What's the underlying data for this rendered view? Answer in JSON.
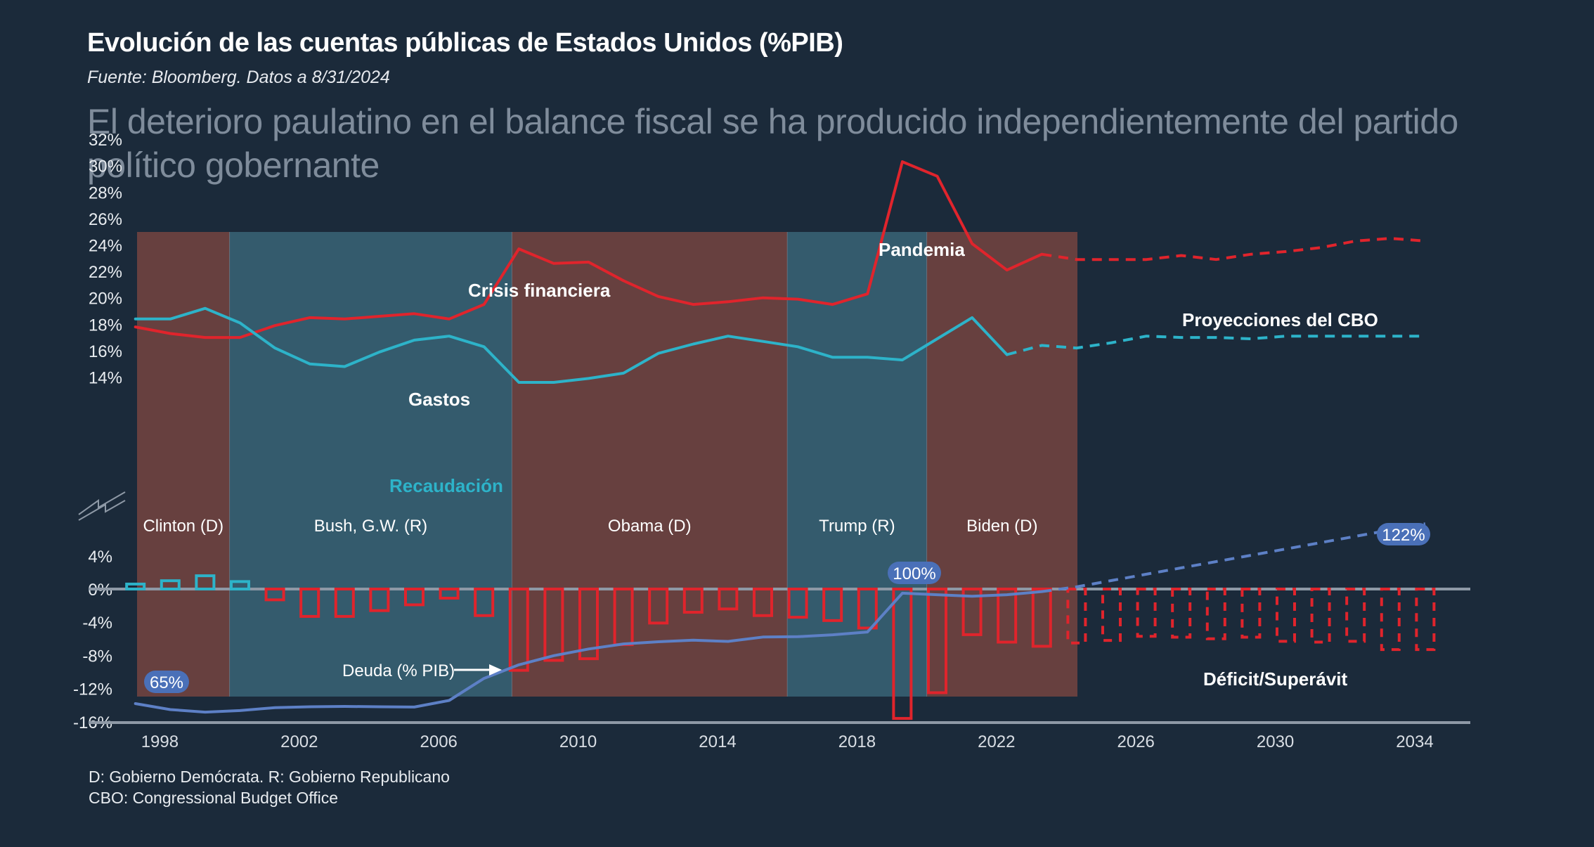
{
  "header": {
    "title": "Evolución de las cuentas públicas de Estados Unidos (%PIB)",
    "source": "Fuente:  Bloomberg.  Datos a 8/31/2024",
    "subtitle": "El deterioro paulatino en el balance fiscal se ha producido independientemente del partido político gobernante"
  },
  "footnotes": {
    "line1": "D: Gobierno Demócrata. R: Gobierno Republicano",
    "line2": "CBO:  Congressional Budget Office"
  },
  "colors": {
    "background": "#1b2a3a",
    "democrat_band": "#67403f",
    "republican_band": "#345b6d",
    "gastos": "#e0242c",
    "recaudacion": "#2db3c9",
    "deficit": "#e0242c",
    "surplus": "#2db3c9",
    "deuda": "#5d80c6",
    "badge": "#4a70b8",
    "axis": "#7d8896"
  },
  "chart_data": {
    "type": "line",
    "x_axis": {
      "range": [
        1997,
        2035
      ],
      "ticks": [
        1998,
        2002,
        2006,
        2010,
        2014,
        2018,
        2022,
        2026,
        2030,
        2034
      ]
    },
    "upper_panel": {
      "ylim": [
        13,
        33
      ],
      "ticks": [
        14,
        16,
        18,
        20,
        22,
        24,
        26,
        28,
        30,
        32
      ],
      "tick_labels": [
        "14%",
        "16%",
        "18%",
        "20%",
        "22%",
        "24%",
        "26%",
        "28%",
        "30%",
        "32%"
      ]
    },
    "lower_panel": {
      "ylim": [
        -16,
        4
      ],
      "ticks": [
        4,
        0,
        -4,
        -8,
        -12,
        -16
      ],
      "tick_labels": [
        "4%",
        "0%",
        "-4%",
        "-8%",
        "-12%",
        "-16%"
      ]
    },
    "administrations": [
      {
        "name": "Clinton (D)",
        "party": "D",
        "start": 1997,
        "end": 2000
      },
      {
        "name": "Bush, G.W. (R)",
        "party": "R",
        "start": 2000,
        "end": 2008.1
      },
      {
        "name": "Obama (D)",
        "party": "D",
        "start": 2008.1,
        "end": 2016
      },
      {
        "name": "Trump (R)",
        "party": "R",
        "start": 2016,
        "end": 2020
      },
      {
        "name": "Biden (D)",
        "party": "D",
        "start": 2020,
        "end": 2024
      }
    ],
    "series": [
      {
        "name": "Gastos",
        "panel": "upper",
        "style": "solid",
        "x": [
          1997.3,
          1998.3,
          1999.3,
          2000.3,
          2001.3,
          2002.3,
          2003.3,
          2004.3,
          2005.3,
          2006.3,
          2007.3,
          2008.3,
          2009.3,
          2010.3,
          2011.3,
          2012.3,
          2013.3,
          2014.3,
          2015.3,
          2016.3,
          2017.3,
          2018.3,
          2019.3,
          2020.3,
          2021.3,
          2022.3,
          2023.3
        ],
        "values": [
          17.8,
          17.3,
          17.0,
          17.0,
          17.9,
          18.5,
          18.4,
          18.6,
          18.8,
          18.4,
          19.5,
          23.7,
          22.6,
          22.7,
          21.3,
          20.1,
          19.5,
          19.7,
          20.0,
          19.9,
          19.5,
          20.3,
          30.3,
          29.2,
          24.1,
          22.1,
          23.3
        ]
      },
      {
        "name": "Gastos (proyección CBO)",
        "panel": "upper",
        "style": "dashed",
        "x": [
          2023.3,
          2024.3,
          2025.3,
          2026.3,
          2027.3,
          2028.3,
          2029.3,
          2030.3,
          2031.3,
          2032.3,
          2033.3,
          2034.3
        ],
        "values": [
          23.3,
          22.9,
          22.9,
          22.9,
          23.2,
          22.9,
          23.3,
          23.5,
          23.8,
          24.3,
          24.5,
          24.3
        ]
      },
      {
        "name": "Recaudación",
        "panel": "upper",
        "style": "solid",
        "x": [
          1997.3,
          1998.3,
          1999.3,
          2000.3,
          2001.3,
          2002.3,
          2003.3,
          2004.3,
          2005.3,
          2006.3,
          2007.3,
          2008.3,
          2009.3,
          2010.3,
          2011.3,
          2012.3,
          2013.3,
          2014.3,
          2015.3,
          2016.3,
          2017.3,
          2018.3,
          2019.3,
          2020.3,
          2021.3,
          2022.3
        ],
        "values": [
          18.4,
          18.4,
          19.2,
          18.1,
          16.2,
          15.0,
          14.8,
          15.9,
          16.8,
          17.1,
          16.3,
          13.6,
          13.6,
          13.9,
          14.3,
          15.8,
          16.5,
          17.1,
          16.7,
          16.3,
          15.5,
          15.5,
          15.3,
          16.9,
          18.5,
          15.7
        ]
      },
      {
        "name": "Recaudación (proyección CBO)",
        "panel": "upper",
        "style": "dashed",
        "x": [
          2022.3,
          2023.3,
          2024.3,
          2025.3,
          2026.3,
          2027.3,
          2028.3,
          2029.3,
          2030.3,
          2031.3,
          2032.3,
          2033.3,
          2034.3
        ],
        "values": [
          15.7,
          16.4,
          16.2,
          16.6,
          17.1,
          17.0,
          17.0,
          16.9,
          17.1,
          17.1,
          17.1,
          17.1,
          17.1
        ]
      },
      {
        "name": "Déficit/Superávit",
        "panel": "lower",
        "type": "bar",
        "x": [
          1997.3,
          1998.3,
          1999.3,
          2000.3,
          2001.3,
          2002.3,
          2003.3,
          2004.3,
          2005.3,
          2006.3,
          2007.3,
          2008.3,
          2009.3,
          2010.3,
          2011.3,
          2012.3,
          2013.3,
          2014.3,
          2015.3,
          2016.3,
          2017.3,
          2018.3,
          2019.3,
          2020.3,
          2021.3,
          2022.3,
          2023.3
        ],
        "values": [
          0.6,
          1.0,
          1.6,
          0.9,
          -1.3,
          -3.3,
          -3.3,
          -2.6,
          -1.9,
          -1.1,
          -3.2,
          -9.8,
          -8.6,
          -8.4,
          -6.7,
          -4.1,
          -2.8,
          -2.4,
          -3.2,
          -3.4,
          -3.8,
          -4.7,
          -15.6,
          -12.5,
          -5.5,
          -6.4,
          -6.9
        ]
      },
      {
        "name": "Déficit/Superávit (proyección CBO)",
        "panel": "lower",
        "type": "bar",
        "style": "dashed",
        "x": [
          2024.3,
          2025.3,
          2026.3,
          2027.3,
          2028.3,
          2029.3,
          2030.3,
          2031.3,
          2032.3,
          2033.3,
          2034.3
        ],
        "values": [
          -6.5,
          -6.2,
          -5.7,
          -5.8,
          -6.0,
          -5.8,
          -6.3,
          -6.4,
          -6.3,
          -7.3,
          -7.3
        ]
      },
      {
        "name": "Deuda (% PIB)",
        "panel": "lower",
        "style": "solid",
        "note": "Escala relativa a la derecha, sin eje: 65% en 1998 a 100% en 2019",
        "x": [
          1997.3,
          1998.3,
          1999.3,
          2000.3,
          2001.3,
          2002.3,
          2003.3,
          2004.3,
          2005.3,
          2006.3,
          2007.3,
          2008.3,
          2009.3,
          2010.3,
          2011.3,
          2012.3,
          2013.3,
          2014.3,
          2015.3,
          2016.3,
          2017.3,
          2018.3,
          2019.3,
          2020.3,
          2021.3,
          2022.3,
          2023.3
        ],
        "values": [
          65,
          63.1,
          62.3,
          62.8,
          63.7,
          64.0,
          64.1,
          64.0,
          63.9,
          66.0,
          73.0,
          77.3,
          80.2,
          82.3,
          83.9,
          84.6,
          85.1,
          84.7,
          86.1,
          86.2,
          86.8,
          87.7,
          100,
          99.5,
          99.0,
          99.5,
          100.5
        ]
      },
      {
        "name": "Deuda (proyección CBO)",
        "panel": "lower",
        "style": "dashed",
        "x": [
          2023.3,
          2024.3,
          2025.3,
          2026.3,
          2027.3,
          2028.3,
          2029.3,
          2030.3,
          2031.3,
          2032.3,
          2033.3,
          2034.3
        ],
        "values": [
          100.5,
          102,
          104,
          106,
          108,
          110,
          112,
          114,
          116,
          118,
          120,
          122
        ]
      }
    ],
    "annotations": {
      "crisis": "Crisis financiera",
      "pandemia": "Pandemia",
      "gastos": "Gastos",
      "recaudacion": "Recaudación",
      "cbo": "Proyecciones del CBO",
      "deficit": "Déficit/Superávit",
      "deuda": "Deuda (% PIB)",
      "badge_start": "65%",
      "badge_peak": "100%",
      "badge_end": "122%"
    }
  }
}
